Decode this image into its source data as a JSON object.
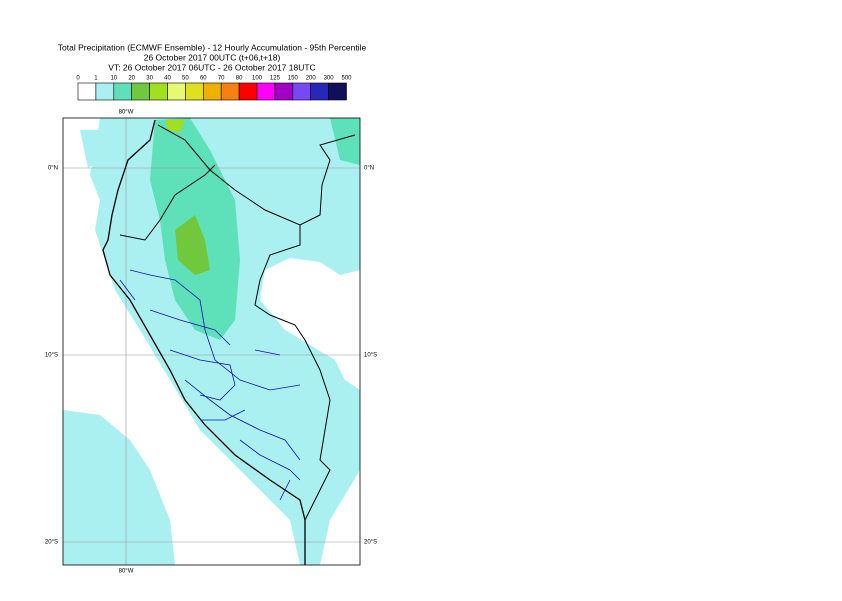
{
  "header": {
    "title": "Total Precipitation (ECMWF Ensemble) - 12 Hourly Accumulation - 95th Percentile",
    "line2": "26 October 2017 00UTC (t+06,t+18)",
    "line3": "VT: 26 October 2017 06UTC - 26 October 2017 18UTC"
  },
  "legend": {
    "labels": [
      0,
      1,
      10,
      20,
      30,
      40,
      50,
      60,
      70,
      80,
      100,
      125,
      150,
      200,
      300,
      500
    ],
    "colors": [
      "#ffffff",
      "#aaf0f0",
      "#5ee0b8",
      "#72c83c",
      "#a0e020",
      "#e8f870",
      "#e0e020",
      "#f0b000",
      "#f88010",
      "#ff0000",
      "#ff00ff",
      "#a000c8",
      "#7848f0",
      "#2828b8",
      "#101058"
    ]
  },
  "map": {
    "lon_label_top": "80°W",
    "lon_label_bottom": "80°W",
    "lat_labels": [
      "0°N",
      "10°S",
      "20°S"
    ]
  }
}
